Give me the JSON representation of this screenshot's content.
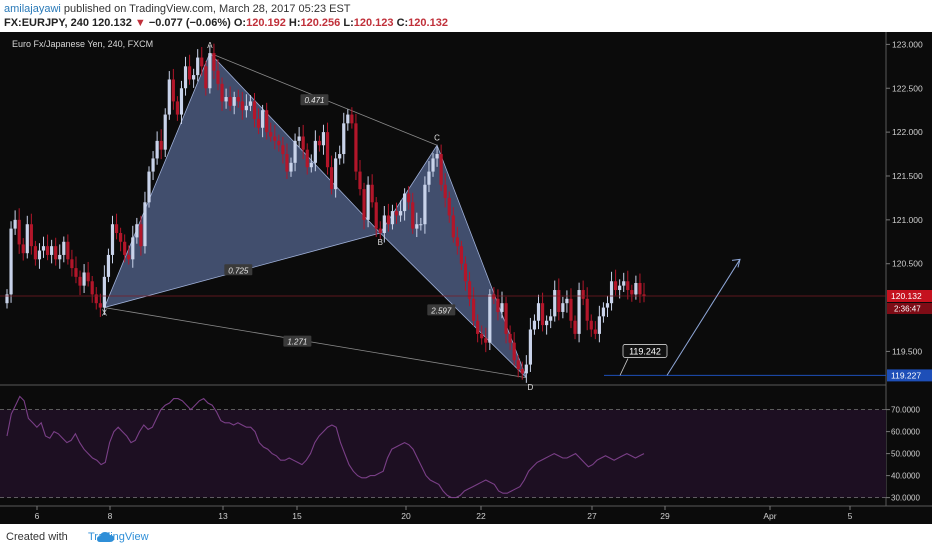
{
  "header": {
    "author": "amilajayawi",
    "published_text": "published on TradingView.com, March 28, 2017 05:23 EST",
    "symbol_line": "FX:EURJPY, 240",
    "last": "120.132",
    "arrow": "▼",
    "change": "−0.077 (−0.06%)",
    "o_label": "O:",
    "o_val": "120.192",
    "h_label": "H:",
    "h_val": "120.256",
    "l_label": "L:",
    "l_val": "120.123",
    "c_label": "C:",
    "c_val": "120.132"
  },
  "footer": {
    "created_with": "Created with",
    "brand": "TradingView"
  },
  "colors": {
    "background": "#0b0b0b",
    "up_candle": "#c9d3ea",
    "down_candle": "#b3162a",
    "pattern_fill": "#6f87c0",
    "rsi_line": "#7a3f87",
    "rsi_band": "#1d0f22",
    "price_tag": "#c5121f",
    "target_tag": "#1e4fb8",
    "accent_blue": "#2f8fd8"
  },
  "chart_data": [
    {
      "type": "candlestick",
      "title": "Euro Fx/Japanese Yen, 240, FXCM",
      "ylim": [
        119.22,
        123.05
      ],
      "y_ticks": [
        "123.000",
        "122.500",
        "122.000",
        "121.500",
        "121.000",
        "120.500",
        "119.500"
      ],
      "x_ticks": [
        "6",
        "8",
        "13",
        "15",
        "20",
        "22",
        "27",
        "29",
        "Apr",
        "5"
      ],
      "current_price": "120.132",
      "countdown": "2:36:47",
      "target_price_tag": "119.227",
      "annotation": "119.242",
      "pattern_points": [
        {
          "label": "X",
          "date_index": 24,
          "price": 120.0
        },
        {
          "label": "A",
          "date_index": 50,
          "price": 122.9
        },
        {
          "label": "B",
          "date_index": 92,
          "price": 120.85
        },
        {
          "label": "C",
          "date_index": 106,
          "price": 121.85
        },
        {
          "label": "D",
          "date_index": 128,
          "price": 119.2
        }
      ],
      "ratios": [
        "0.471",
        "0.725",
        "2.597",
        "1.271"
      ],
      "closes": [
        120.15,
        120.9,
        121.0,
        120.72,
        120.62,
        120.95,
        120.7,
        120.55,
        120.65,
        120.7,
        120.6,
        120.7,
        120.55,
        120.6,
        120.75,
        120.55,
        120.45,
        120.35,
        120.25,
        120.4,
        120.3,
        120.15,
        120.05,
        120.0,
        120.35,
        120.6,
        120.95,
        120.85,
        120.75,
        120.6,
        120.55,
        120.8,
        120.95,
        120.7,
        121.2,
        121.55,
        121.7,
        121.9,
        121.8,
        122.2,
        122.6,
        122.35,
        122.2,
        122.5,
        122.75,
        122.6,
        122.65,
        122.85,
        122.75,
        122.5,
        122.9,
        122.7,
        122.55,
        122.35,
        122.4,
        122.3,
        122.4,
        122.35,
        122.25,
        122.3,
        122.35,
        122.15,
        122.05,
        122.25,
        122.0,
        121.95,
        121.9,
        121.85,
        121.75,
        121.55,
        121.65,
        121.9,
        121.95,
        121.8,
        121.6,
        121.65,
        121.9,
        121.85,
        122.0,
        121.6,
        121.35,
        121.7,
        121.75,
        122.1,
        122.2,
        122.1,
        121.55,
        121.35,
        121.0,
        121.4,
        121.2,
        120.9,
        120.85,
        121.05,
        120.95,
        121.1,
        121.05,
        121.1,
        121.3,
        121.2,
        120.9,
        120.95,
        120.95,
        121.4,
        121.55,
        121.7,
        121.75,
        121.4,
        121.25,
        121.05,
        120.8,
        120.7,
        120.5,
        120.3,
        120.1,
        119.85,
        119.7,
        119.65,
        119.6,
        120.15,
        120.1,
        119.95,
        120.05,
        119.7,
        119.6,
        119.4,
        119.3,
        119.25,
        119.35,
        119.75,
        119.85,
        120.05,
        119.8,
        119.85,
        119.9,
        120.2,
        119.95,
        120.05,
        120.1,
        119.85,
        119.7,
        120.2,
        120.1,
        119.85,
        119.75,
        119.7,
        119.9,
        120.0,
        120.05,
        120.3,
        120.2,
        120.25,
        120.3,
        120.2,
        120.15,
        120.28,
        120.15,
        120.132
      ]
    },
    {
      "type": "line",
      "title": "",
      "ylim": [
        28,
        78
      ],
      "y_ticks": [
        "70.0000",
        "60.0000",
        "50.0000",
        "40.0000",
        "30.0000"
      ],
      "values": [
        58,
        68,
        72,
        76,
        74,
        66,
        64,
        62,
        64,
        58,
        57,
        60,
        59,
        57,
        55,
        56,
        59,
        55,
        52,
        50,
        48,
        47,
        45,
        46,
        55,
        60,
        62,
        60,
        58,
        55,
        56,
        60,
        63,
        61,
        62,
        66,
        70,
        72,
        73,
        75,
        75,
        74,
        72,
        70,
        72,
        74,
        75,
        73,
        72,
        69,
        65,
        64,
        64,
        63,
        64,
        63,
        62,
        62,
        60,
        55,
        53,
        52,
        50,
        49,
        47,
        47,
        48,
        47,
        46,
        45,
        47,
        50,
        55,
        58,
        60,
        62,
        63,
        62,
        55,
        50,
        45,
        42,
        40,
        39,
        39,
        40,
        40,
        41,
        42,
        48,
        52,
        53,
        54,
        55,
        54,
        52,
        48,
        44,
        40,
        38,
        37,
        36,
        33,
        31,
        30,
        30,
        31,
        33,
        34,
        35,
        36,
        37,
        38,
        37,
        36,
        33,
        32,
        32,
        33,
        34,
        35,
        38,
        42,
        44,
        46,
        47,
        48,
        49,
        50,
        49,
        48,
        48,
        49,
        50,
        48,
        46,
        44,
        45,
        47,
        48,
        49,
        48,
        47,
        48,
        49,
        50,
        49,
        48,
        49,
        50
      ]
    }
  ]
}
